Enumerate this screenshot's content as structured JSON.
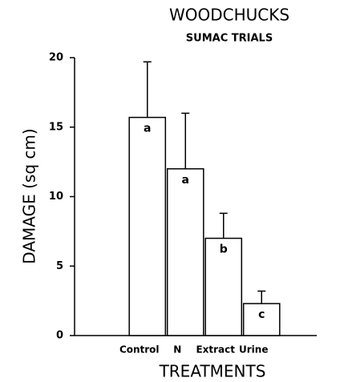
{
  "chart_data": {
    "type": "bar",
    "title": "WOODCHUCKS",
    "subtitle": "SUMAC TRIALS",
    "y_label": "DAMAGE (sq cm)",
    "x_label": "TREATMENTS",
    "categories": [
      "Control",
      "N",
      "Extract",
      "Urine"
    ],
    "values": [
      15.7,
      12.0,
      7.0,
      2.3
    ],
    "errors": [
      4.0,
      4.0,
      1.8,
      0.9
    ],
    "annotations": [
      "a",
      "a",
      "b",
      "c"
    ],
    "color": "#ffffff",
    "ylim": [
      0,
      20
    ],
    "yticks": [
      0,
      5,
      10,
      15,
      20
    ]
  }
}
